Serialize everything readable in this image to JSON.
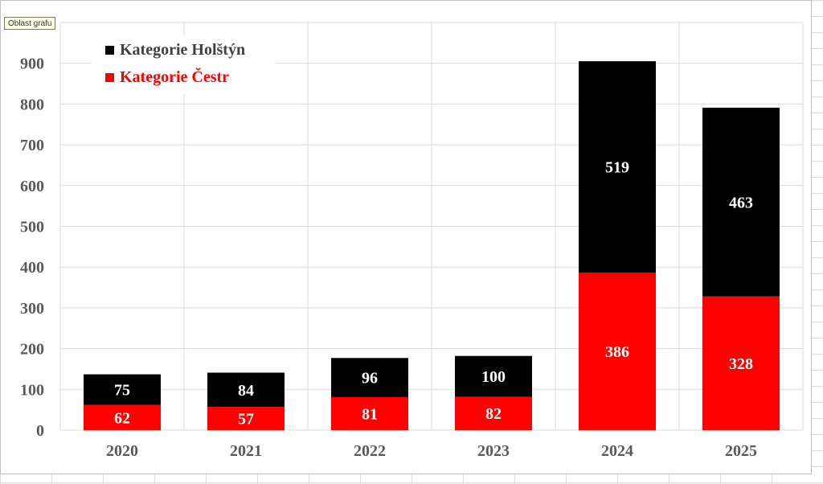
{
  "tooltip": "Oblast grafu",
  "colors": {
    "holstyn": "#000000",
    "cestr": "#ff0000",
    "axis_text": "#595959",
    "grid": "#d9d9d9",
    "label": "#ffffff"
  },
  "legend": {
    "holstyn": "Kategorie Holštýn",
    "cestr": "Kategorie Čestr"
  },
  "chart_data": {
    "type": "bar",
    "stacked": true,
    "categories": [
      "2020",
      "2021",
      "2022",
      "2023",
      "2024",
      "2025"
    ],
    "series": [
      {
        "name": "Kategorie Čestr",
        "values": [
          62,
          57,
          81,
          82,
          386,
          328
        ]
      },
      {
        "name": "Kategorie Holštýn",
        "values": [
          75,
          84,
          96,
          100,
          519,
          463
        ]
      }
    ],
    "yticks": [
      0,
      100,
      200,
      300,
      400,
      500,
      600,
      700,
      800,
      900
    ],
    "ylim": [
      0,
      1000
    ],
    "grid": true,
    "legend_position": "top-left",
    "title": "",
    "xlabel": "",
    "ylabel": ""
  }
}
